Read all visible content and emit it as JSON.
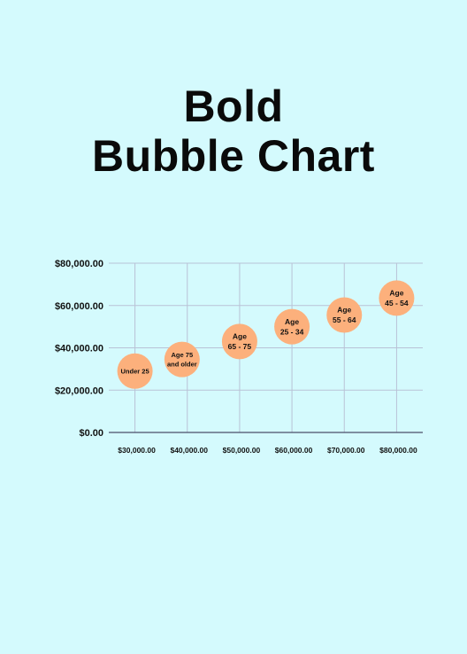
{
  "title": {
    "line1": "Bold",
    "line2": "Bubble Chart"
  },
  "chart_data": {
    "type": "scatter",
    "subtype": "bubble",
    "xlabel": "",
    "ylabel": "",
    "xlim": [
      25000,
      85000
    ],
    "ylim": [
      0,
      80000
    ],
    "x_ticks": [
      "$30,000.00",
      "$40,000.00",
      "$50,000.00",
      "$60,000.00",
      "$70,000.00",
      "$80,000.00"
    ],
    "x_tick_values": [
      30000,
      40000,
      50000,
      60000,
      70000,
      80000
    ],
    "y_ticks": [
      "$0.00",
      "$20,000.00",
      "$40,000.00",
      "$60,000.00",
      "$80,000.00"
    ],
    "y_tick_values": [
      0,
      20000,
      40000,
      60000,
      80000
    ],
    "grid": true,
    "bubble_color": "#fcb07c",
    "grid_color": "#b9c2d6",
    "points": [
      {
        "label": [
          "Under 25"
        ],
        "x": 30000,
        "y": 29000
      },
      {
        "label": [
          "Age 75",
          "and older"
        ],
        "x": 39000,
        "y": 34500
      },
      {
        "label": [
          "Age",
          "65 - 75"
        ],
        "x": 50000,
        "y": 43000
      },
      {
        "label": [
          "Age",
          "25 - 34"
        ],
        "x": 60000,
        "y": 50000
      },
      {
        "label": [
          "Age",
          "55 - 64"
        ],
        "x": 70000,
        "y": 55500
      },
      {
        "label": [
          "Age",
          "45 - 54"
        ],
        "x": 80000,
        "y": 63500
      }
    ]
  }
}
